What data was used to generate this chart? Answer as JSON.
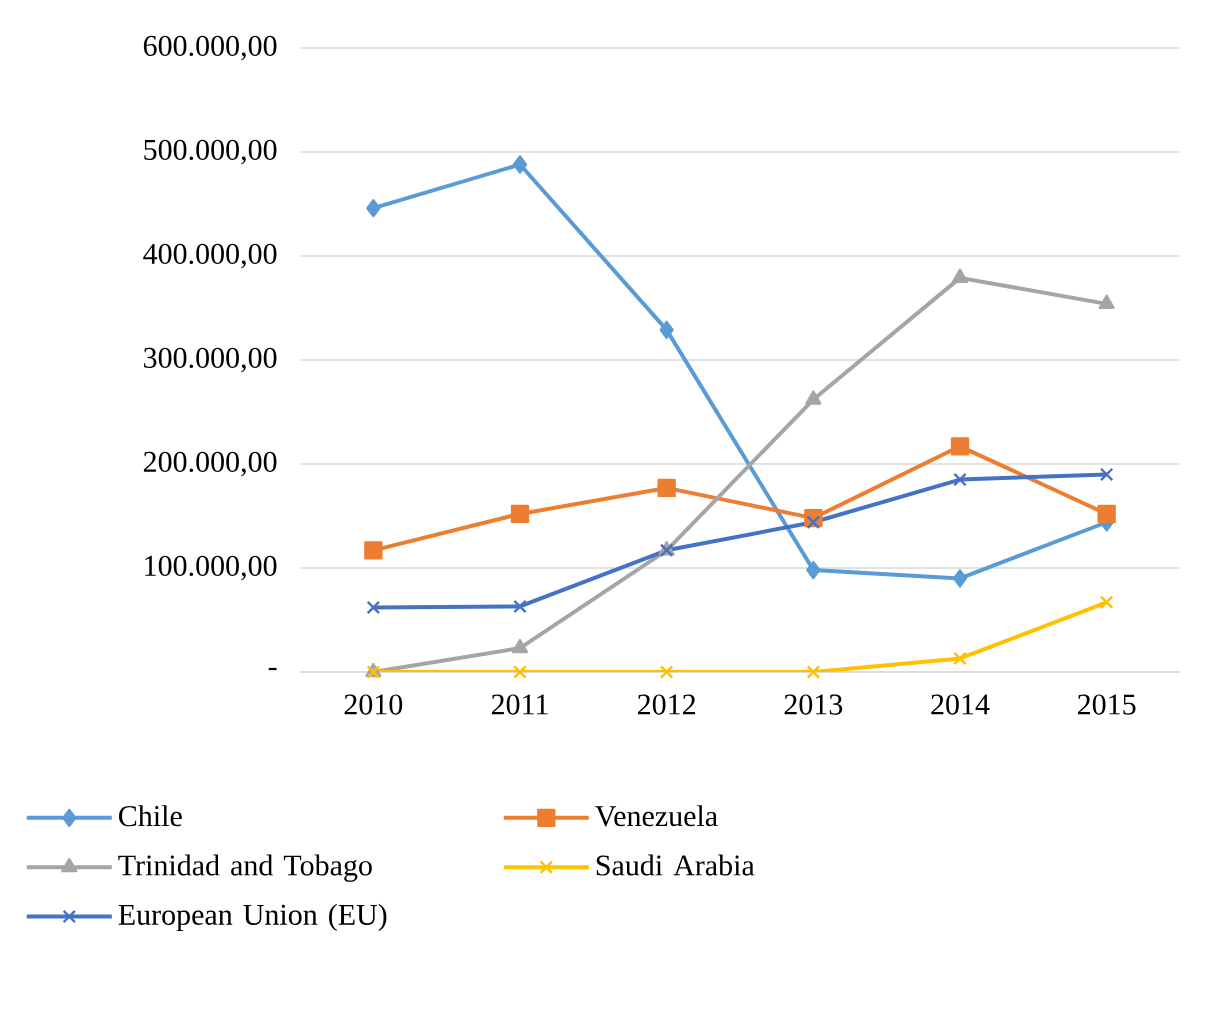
{
  "chart_data": {
    "type": "line",
    "categories": [
      "2010",
      "2011",
      "2012",
      "2013",
      "2014",
      "2015"
    ],
    "ylim": [
      0,
      600000
    ],
    "yticks": [
      {
        "value": 0,
        "label": "-"
      },
      {
        "value": 100000,
        "label": "100.000,00"
      },
      {
        "value": 200000,
        "label": "200.000,00"
      },
      {
        "value": 300000,
        "label": "300.000,00"
      },
      {
        "value": 400000,
        "label": "400.000,00"
      },
      {
        "value": 500000,
        "label": "500.000,00"
      },
      {
        "value": 600000,
        "label": "600.000,00"
      }
    ],
    "grid": "y",
    "legend": "bottom",
    "series": [
      {
        "name": "Chile",
        "color": "#5b9bd5",
        "marker": "diamond",
        "values": [
          446000,
          488000,
          329000,
          98000,
          90000,
          144000
        ]
      },
      {
        "name": "Venezuela",
        "color": "#ed7d31",
        "marker": "square",
        "values": [
          117000,
          152000,
          177000,
          148000,
          217000,
          152000
        ]
      },
      {
        "name": "Trinidad and Tobago",
        "color": "#a5a5a5",
        "marker": "triangle",
        "values": [
          0,
          23000,
          117000,
          262000,
          379000,
          354000
        ]
      },
      {
        "name": "Saudi Arabia",
        "color": "#ffc000",
        "marker": "cross",
        "values": [
          0,
          0,
          0,
          0,
          13000,
          67000
        ]
      },
      {
        "name": "European Union (EU)",
        "color": "#4472c4",
        "marker": "cross",
        "values": [
          62000,
          63000,
          117000,
          144000,
          185000,
          190000
        ]
      }
    ]
  }
}
